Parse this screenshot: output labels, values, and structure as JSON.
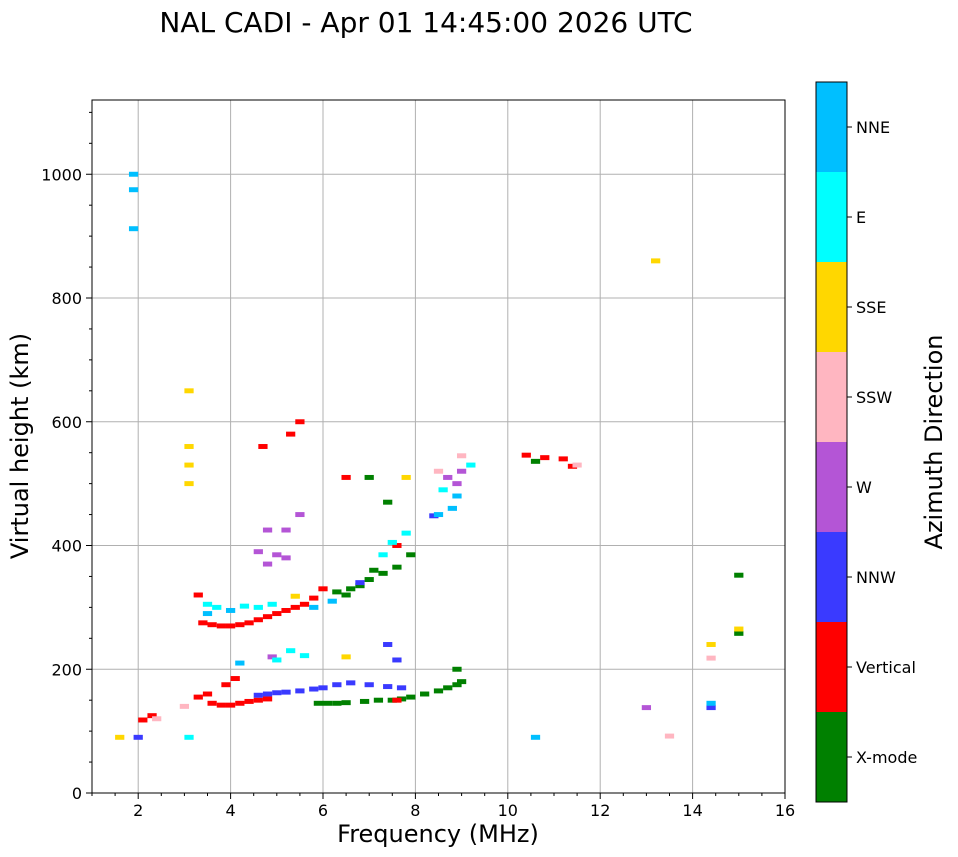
{
  "chart_data": {
    "type": "scatter",
    "title": "NAL CADI - Apr 01 14:45:00 2026 UTC",
    "xlabel": "Frequency (MHz)",
    "ylabel": "Virtual height (km)",
    "xlim": [
      1,
      16
    ],
    "ylim": [
      0,
      1120
    ],
    "xticks": [
      2,
      4,
      6,
      8,
      10,
      12,
      14,
      16
    ],
    "yticks": [
      0,
      200,
      400,
      600,
      800,
      1000
    ],
    "grid": true,
    "colorbar": {
      "label": "Azimuth Direction",
      "categories": [
        {
          "name": "X-mode",
          "color": "#008000"
        },
        {
          "name": "Vertical",
          "color": "#ff0000"
        },
        {
          "name": "NNW",
          "color": "#3a3aff"
        },
        {
          "name": "W",
          "color": "#b455d6"
        },
        {
          "name": "SSW",
          "color": "#ffb6c1"
        },
        {
          "name": "SSE",
          "color": "#ffd700"
        },
        {
          "name": "E",
          "color": "#00ffff"
        },
        {
          "name": "NNE",
          "color": "#00bfff"
        }
      ]
    },
    "series": [
      {
        "name": "X-mode",
        "points": [
          [
            5.9,
            145
          ],
          [
            6.1,
            145
          ],
          [
            6.3,
            145
          ],
          [
            6.5,
            146
          ],
          [
            6.9,
            148
          ],
          [
            7.2,
            150
          ],
          [
            7.5,
            150
          ],
          [
            7.7,
            152
          ],
          [
            7.9,
            155
          ],
          [
            8.2,
            160
          ],
          [
            8.5,
            165
          ],
          [
            8.7,
            170
          ],
          [
            8.9,
            175
          ],
          [
            9.0,
            180
          ],
          [
            6.3,
            325
          ],
          [
            6.6,
            330
          ],
          [
            6.8,
            335
          ],
          [
            7.0,
            345
          ],
          [
            7.3,
            355
          ],
          [
            7.6,
            365
          ],
          [
            7.9,
            385
          ],
          [
            6.5,
            320
          ],
          [
            7.1,
            360
          ],
          [
            10.6,
            536
          ],
          [
            15.0,
            258
          ],
          [
            15.0,
            352
          ],
          [
            8.9,
            200
          ],
          [
            7.4,
            470
          ],
          [
            7.0,
            510
          ]
        ]
      },
      {
        "name": "Vertical",
        "points": [
          [
            3.4,
            275
          ],
          [
            3.6,
            272
          ],
          [
            3.8,
            270
          ],
          [
            4.0,
            270
          ],
          [
            4.2,
            272
          ],
          [
            4.4,
            275
          ],
          [
            4.6,
            280
          ],
          [
            4.8,
            285
          ],
          [
            5.0,
            290
          ],
          [
            5.2,
            295
          ],
          [
            5.4,
            300
          ],
          [
            5.6,
            305
          ],
          [
            5.8,
            315
          ],
          [
            6.0,
            330
          ],
          [
            3.6,
            145
          ],
          [
            3.8,
            142
          ],
          [
            4.0,
            142
          ],
          [
            4.2,
            145
          ],
          [
            4.4,
            148
          ],
          [
            4.6,
            150
          ],
          [
            4.8,
            152
          ],
          [
            3.3,
            155
          ],
          [
            3.5,
            160
          ],
          [
            3.9,
            175
          ],
          [
            4.1,
            185
          ],
          [
            2.1,
            118
          ],
          [
            2.3,
            125
          ],
          [
            5.3,
            580
          ],
          [
            5.5,
            600
          ],
          [
            4.7,
            560
          ],
          [
            10.4,
            546
          ],
          [
            10.8,
            542
          ],
          [
            11.2,
            540
          ],
          [
            11.4,
            528
          ],
          [
            6.5,
            510
          ],
          [
            7.6,
            150
          ],
          [
            3.3,
            320
          ],
          [
            7.6,
            400
          ]
        ]
      },
      {
        "name": "NNW",
        "points": [
          [
            4.6,
            158
          ],
          [
            4.8,
            160
          ],
          [
            5.0,
            162
          ],
          [
            5.2,
            163
          ],
          [
            5.5,
            165
          ],
          [
            5.8,
            168
          ],
          [
            6.0,
            170
          ],
          [
            6.3,
            175
          ],
          [
            6.6,
            178
          ],
          [
            7.0,
            175
          ],
          [
            7.4,
            172
          ],
          [
            7.7,
            170
          ],
          [
            2.0,
            90
          ],
          [
            7.4,
            240
          ],
          [
            7.6,
            215
          ],
          [
            14.4,
            138
          ],
          [
            8.4,
            448
          ],
          [
            6.8,
            340
          ]
        ]
      },
      {
        "name": "W",
        "points": [
          [
            4.8,
            370
          ],
          [
            5.0,
            385
          ],
          [
            5.2,
            380
          ],
          [
            4.6,
            390
          ],
          [
            4.8,
            425
          ],
          [
            5.2,
            425
          ],
          [
            5.5,
            450
          ],
          [
            8.9,
            500
          ],
          [
            9.0,
            520
          ],
          [
            8.7,
            510
          ],
          [
            13.0,
            138
          ],
          [
            4.9,
            220
          ]
        ]
      },
      {
        "name": "SSW",
        "points": [
          [
            2.4,
            120
          ],
          [
            3.0,
            140
          ],
          [
            8.5,
            520
          ],
          [
            9.0,
            545
          ],
          [
            11.5,
            530
          ],
          [
            13.5,
            92
          ],
          [
            14.4,
            218
          ]
        ]
      },
      {
        "name": "SSE",
        "points": [
          [
            1.6,
            90
          ],
          [
            3.1,
            500
          ],
          [
            3.1,
            530
          ],
          [
            3.1,
            560
          ],
          [
            3.1,
            650
          ],
          [
            13.2,
            860
          ],
          [
            14.4,
            240
          ],
          [
            15.0,
            265
          ],
          [
            5.4,
            318
          ],
          [
            6.5,
            220
          ],
          [
            7.8,
            510
          ]
        ]
      },
      {
        "name": "E",
        "points": [
          [
            3.5,
            305
          ],
          [
            3.7,
            300
          ],
          [
            4.3,
            302
          ],
          [
            4.6,
            300
          ],
          [
            4.9,
            305
          ],
          [
            5.3,
            230
          ],
          [
            5.6,
            222
          ],
          [
            5.0,
            215
          ],
          [
            7.3,
            385
          ],
          [
            7.5,
            405
          ],
          [
            7.8,
            420
          ],
          [
            9.2,
            530
          ],
          [
            3.1,
            90
          ],
          [
            8.6,
            490
          ]
        ]
      },
      {
        "name": "NNE",
        "points": [
          [
            1.9,
            1000
          ],
          [
            1.9,
            975
          ],
          [
            1.9,
            912
          ],
          [
            3.5,
            290
          ],
          [
            4.0,
            295
          ],
          [
            5.8,
            300
          ],
          [
            6.2,
            310
          ],
          [
            10.6,
            90
          ],
          [
            14.4,
            145
          ],
          [
            8.8,
            460
          ],
          [
            8.9,
            480
          ],
          [
            8.5,
            450
          ],
          [
            4.2,
            210
          ]
        ]
      }
    ]
  }
}
